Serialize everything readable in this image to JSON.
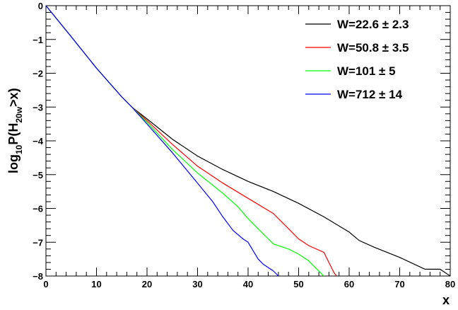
{
  "chart_data": {
    "type": "line",
    "title": "",
    "xlabel": "x",
    "ylabel_parts": {
      "base": "log",
      "base_sub": "10",
      "func": "P(H",
      "func_sub": "20w",
      "tail": ">x)"
    },
    "xlim": [
      0,
      80
    ],
    "ylim": [
      -8,
      0
    ],
    "x_ticks": [
      "0",
      "10",
      "20",
      "30",
      "40",
      "50",
      "60",
      "70",
      "80"
    ],
    "y_ticks": [
      "0",
      "−1",
      "−2",
      "−3",
      "−4",
      "−5",
      "−6",
      "−7",
      "−8"
    ],
    "grid": false,
    "legend_position": "top-right",
    "series": [
      {
        "name": "W=22.6",
        "uncertainty": "± 2.3",
        "color": "#000000",
        "x": [
          0,
          5,
          10,
          15,
          17,
          20,
          25,
          30,
          35,
          40,
          45,
          50,
          55,
          60,
          62,
          65,
          70,
          75,
          78,
          80
        ],
        "y": [
          0,
          -0.92,
          -1.85,
          -2.7,
          -3.0,
          -3.35,
          -3.95,
          -4.45,
          -4.85,
          -5.2,
          -5.5,
          -5.85,
          -6.25,
          -6.7,
          -6.95,
          -7.15,
          -7.45,
          -7.8,
          -7.8,
          -8.0
        ]
      },
      {
        "name": "W=50.8",
        "uncertainty": "± 3.5",
        "color": "#ff0000",
        "x": [
          0,
          5,
          10,
          15,
          17,
          20,
          25,
          30,
          35,
          40,
          45,
          48,
          50,
          52,
          55,
          56,
          57,
          57.5
        ],
        "y": [
          0,
          -0.92,
          -1.85,
          -2.7,
          -3.0,
          -3.4,
          -4.1,
          -4.75,
          -5.25,
          -5.7,
          -6.15,
          -6.6,
          -6.9,
          -7.1,
          -7.3,
          -7.6,
          -7.9,
          -8.0
        ]
      },
      {
        "name": "W=101",
        "uncertainty": "± 5",
        "color": "#00ff00",
        "x": [
          0,
          5,
          10,
          15,
          17,
          20,
          25,
          30,
          35,
          38,
          40,
          43,
          45,
          48,
          50,
          52,
          53,
          54,
          55
        ],
        "y": [
          0,
          -0.92,
          -1.85,
          -2.7,
          -3.0,
          -3.45,
          -4.25,
          -4.95,
          -5.55,
          -5.95,
          -6.3,
          -6.75,
          -7.05,
          -7.2,
          -7.35,
          -7.55,
          -7.7,
          -7.85,
          -8.0
        ]
      },
      {
        "name": "W=712",
        "uncertainty": "± 14",
        "color": "#0000ff",
        "x": [
          0,
          5,
          10,
          15,
          17,
          20,
          25,
          30,
          33,
          35,
          37,
          39,
          40,
          41,
          42,
          43,
          44,
          45,
          46
        ],
        "y": [
          0,
          -0.92,
          -1.85,
          -2.7,
          -3.0,
          -3.5,
          -4.35,
          -5.25,
          -5.8,
          -6.25,
          -6.65,
          -6.9,
          -7.0,
          -7.25,
          -7.5,
          -7.65,
          -7.75,
          -7.85,
          -8.0
        ]
      }
    ]
  }
}
